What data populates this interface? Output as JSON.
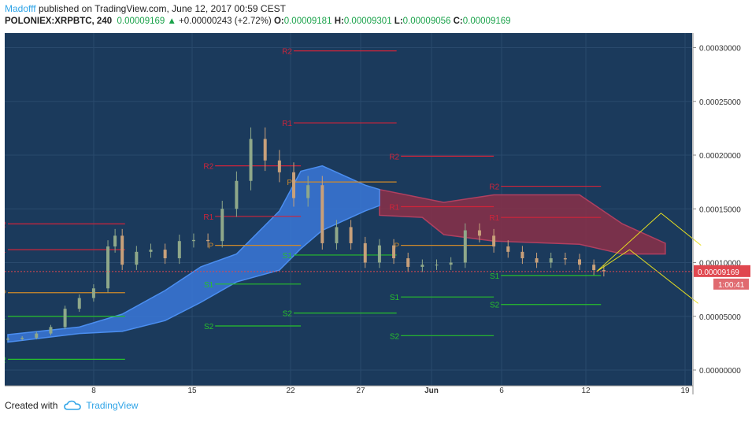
{
  "header": {
    "author": "Madofff",
    "published": "published on TradingView.com, June 12, 2017 00:59 CEST",
    "symbol": "POLONIEX:XRPBTC, 240",
    "last": "0.00009169",
    "change_arrow": "▲",
    "change": "+0.00000243 (+2.72%)",
    "o_label": "O:",
    "o": "0.00009181",
    "h_label": "H:",
    "h": "0.00009301",
    "l_label": "L:",
    "l": "0.00009056",
    "c_label": "C:",
    "c": "0.00009169"
  },
  "footer": {
    "created_with": "Created with",
    "brand": "TradingView"
  },
  "colors": {
    "background": "#1b3a5c",
    "cloud_blue": "#3a78d8",
    "cloud_red": "#8a3048",
    "resistance": "#d0243a",
    "support": "#27c02b",
    "pivot": "#d08a2a",
    "candle_up": "#8fa88a",
    "candle_down": "#c8a07a",
    "arrows": "#e8e020",
    "price_tag": "#e0474f"
  },
  "chart_data": {
    "type": "candlestick",
    "title": "",
    "xlabel": "",
    "ylabel": "",
    "x_ticks": [
      "8",
      "15",
      "22",
      "27",
      "Jun",
      "6",
      "12",
      "19"
    ],
    "y_ticks": [
      "0.00030000",
      "0.00025000",
      "0.00020000",
      "0.00015000",
      "0.00010000",
      "0.00005000",
      "0.00000000"
    ],
    "ylim": [
      0,
      0.00031
    ],
    "last_price": "0.00009169",
    "countdown": "1:00:41",
    "grid": true,
    "close_series": [
      {
        "x": 0.0,
        "y": 2.9e-05
      },
      {
        "x": 1.0,
        "y": 3e-05
      },
      {
        "x": 2.0,
        "y": 3.4e-05
      },
      {
        "x": 3.0,
        "y": 4e-05
      },
      {
        "x": 4.0,
        "y": 5.7e-05
      },
      {
        "x": 5.0,
        "y": 6.7e-05
      },
      {
        "x": 6.0,
        "y": 7.6e-05
      },
      {
        "x": 7.0,
        "y": 0.000115
      },
      {
        "x": 7.5,
        "y": 0.000125
      },
      {
        "x": 8.0,
        "y": 9.8e-05
      },
      {
        "x": 9.0,
        "y": 0.00011
      },
      {
        "x": 10.0,
        "y": 0.000112
      },
      {
        "x": 11.0,
        "y": 0.000104
      },
      {
        "x": 12.0,
        "y": 0.00012
      },
      {
        "x": 13.0,
        "y": 0.000121
      },
      {
        "x": 14.0,
        "y": 0.00012
      },
      {
        "x": 15.0,
        "y": 0.00015
      },
      {
        "x": 16.0,
        "y": 0.000176
      },
      {
        "x": 17.0,
        "y": 0.000215
      },
      {
        "x": 18.0,
        "y": 0.000195
      },
      {
        "x": 19.0,
        "y": 0.000184
      },
      {
        "x": 20.0,
        "y": 0.00016
      },
      {
        "x": 21.0,
        "y": 0.000172
      },
      {
        "x": 22.0,
        "y": 0.000118
      },
      {
        "x": 23.0,
        "y": 0.000133
      },
      {
        "x": 24.0,
        "y": 0.000118
      },
      {
        "x": 25.0,
        "y": 0.0001
      },
      {
        "x": 26.0,
        "y": 0.000116
      },
      {
        "x": 27.0,
        "y": 0.000104
      },
      {
        "x": 28.0,
        "y": 9.6e-05
      },
      {
        "x": 29.0,
        "y": 9.8e-05
      },
      {
        "x": 30.0,
        "y": 9.8e-05
      },
      {
        "x": 31.0,
        "y": 0.0001
      },
      {
        "x": 32.0,
        "y": 0.00013
      },
      {
        "x": 33.0,
        "y": 0.000125
      },
      {
        "x": 34.0,
        "y": 0.000115
      },
      {
        "x": 35.0,
        "y": 0.00011
      },
      {
        "x": 36.0,
        "y": 0.000104
      },
      {
        "x": 37.0,
        "y": 0.0001
      },
      {
        "x": 38.0,
        "y": 0.000104
      },
      {
        "x": 39.0,
        "y": 0.000103
      },
      {
        "x": 40.0,
        "y": 9.8e-05
      },
      {
        "x": 41.0,
        "y": 9.3e-05
      },
      {
        "x": 41.7,
        "y": 9.17e-05
      }
    ],
    "cloud_blue": [
      {
        "x": 0.0,
        "lo": 2.6e-05,
        "hi": 3.3e-05
      },
      {
        "x": 5.0,
        "lo": 3.4e-05,
        "hi": 4e-05
      },
      {
        "x": 8.0,
        "lo": 3.6e-05,
        "hi": 5.2e-05
      },
      {
        "x": 11.0,
        "lo": 4.6e-05,
        "hi": 7.4e-05
      },
      {
        "x": 13.5,
        "lo": 6.3e-05,
        "hi": 9.6e-05
      },
      {
        "x": 16.0,
        "lo": 8.2e-05,
        "hi": 0.000108
      },
      {
        "x": 19.0,
        "lo": 9.3e-05,
        "hi": 0.000148
      },
      {
        "x": 20.5,
        "lo": 0.000113,
        "hi": 0.000185
      },
      {
        "x": 22.0,
        "lo": 0.00013,
        "hi": 0.00019
      },
      {
        "x": 25.0,
        "lo": 0.000148,
        "hi": 0.000172
      },
      {
        "x": 26.0,
        "lo": 0.000153,
        "hi": 0.000168
      }
    ],
    "cloud_red": [
      {
        "x": 26.0,
        "lo": 0.000144,
        "hi": 0.000168
      },
      {
        "x": 29.0,
        "lo": 0.000142,
        "hi": 0.00016
      },
      {
        "x": 30.5,
        "lo": 0.000126,
        "hi": 0.000156
      },
      {
        "x": 34.0,
        "lo": 0.00012,
        "hi": 0.000163
      },
      {
        "x": 40.0,
        "lo": 0.000117,
        "hi": 0.000163
      },
      {
        "x": 43.0,
        "lo": 0.000108,
        "hi": 0.000136
      },
      {
        "x": 46.0,
        "lo": 0.000108,
        "hi": 0.000118
      }
    ],
    "pivot_levels": [
      {
        "label": "R2",
        "x0": 0.0,
        "x1": 8.2,
        "y": 0.000136
      },
      {
        "label": "R1",
        "x0": 0.0,
        "x1": 8.2,
        "y": 0.000112
      },
      {
        "label": "P",
        "x0": 0.0,
        "x1": 8.2,
        "y": 7.2e-05
      },
      {
        "label": "S1",
        "x0": 0.0,
        "x1": 8.2,
        "y": 5e-05
      },
      {
        "label": "S2",
        "x0": 0.0,
        "x1": 8.2,
        "y": 1e-05
      },
      {
        "label": "R2",
        "x0": 14.5,
        "x1": 20.5,
        "y": 0.00019
      },
      {
        "label": "R1",
        "x0": 14.5,
        "x1": 20.5,
        "y": 0.000143
      },
      {
        "label": "P",
        "x0": 14.5,
        "x1": 20.5,
        "y": 0.000116
      },
      {
        "label": "S1",
        "x0": 14.5,
        "x1": 20.5,
        "y": 8e-05
      },
      {
        "label": "S2",
        "x0": 14.5,
        "x1": 20.5,
        "y": 4.1e-05
      },
      {
        "label": "R2",
        "x0": 20.0,
        "x1": 27.2,
        "y": 0.000297
      },
      {
        "label": "R1",
        "x0": 20.0,
        "x1": 27.2,
        "y": 0.00023
      },
      {
        "label": "P",
        "x0": 20.0,
        "x1": 27.2,
        "y": 0.000175
      },
      {
        "label": "S1",
        "x0": 20.0,
        "x1": 27.2,
        "y": 0.000107
      },
      {
        "label": "S2",
        "x0": 20.0,
        "x1": 27.2,
        "y": 5.3e-05
      },
      {
        "label": "R2",
        "x0": 27.5,
        "x1": 34.0,
        "y": 0.000199
      },
      {
        "label": "R1",
        "x0": 27.5,
        "x1": 34.0,
        "y": 0.000152
      },
      {
        "label": "P",
        "x0": 27.5,
        "x1": 34.0,
        "y": 0.000116
      },
      {
        "label": "S1",
        "x0": 27.5,
        "x1": 34.0,
        "y": 6.8e-05
      },
      {
        "label": "S2",
        "x0": 27.5,
        "x1": 34.0,
        "y": 3.2e-05
      },
      {
        "label": "R2",
        "x0": 34.5,
        "x1": 41.5,
        "y": 0.000171
      },
      {
        "label": "R1",
        "x0": 34.5,
        "x1": 41.5,
        "y": 0.000142
      },
      {
        "label": "S1",
        "x0": 34.5,
        "x1": 41.5,
        "y": 8.8e-05
      },
      {
        "label": "S2",
        "x0": 34.5,
        "x1": 41.5,
        "y": 6.1e-05
      }
    ]
  }
}
